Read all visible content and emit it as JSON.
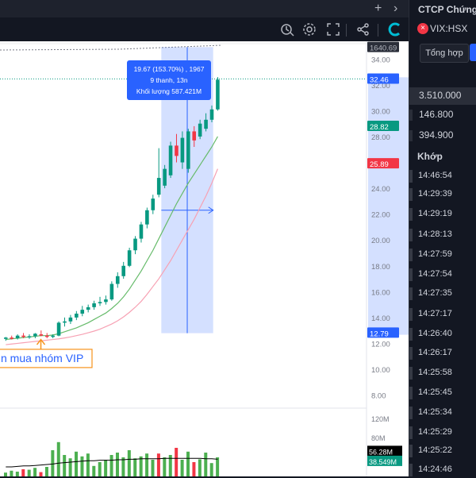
{
  "window": {
    "title": "CTCP Chứng"
  },
  "icons": {
    "add": "plus-icon",
    "menu": "chevron-right-icon",
    "replay": "replay-icon",
    "settings": "gear-icon",
    "fullscreen": "fullscreen-icon",
    "share": "share-icon",
    "logo": "brand-logo"
  },
  "symbol": {
    "code": "VIX:HSX"
  },
  "panel": {
    "tab_label": "Tổng hợp",
    "stats": [
      "3.510.000",
      "146.800",
      "394.900"
    ],
    "trades_header": "Khớp",
    "times": [
      "14:46:54",
      "14:29:39",
      "14:29:19",
      "14:28:13",
      "14:27:59",
      "14:27:54",
      "14:27:35",
      "14:27:17",
      "14:26:40",
      "14:26:17",
      "14:25:58",
      "14:25:45",
      "14:25:34",
      "14:25:29",
      "14:25:22",
      "14:24:46"
    ]
  },
  "chart_data": {
    "type": "candlestick",
    "y_ticks": [
      "34.00",
      "32.00",
      "30.00",
      "28.00",
      "26.00",
      "24.00",
      "22.00",
      "20.00",
      "18.00",
      "16.00",
      "14.00",
      "12.00",
      "10.00",
      "8.00"
    ],
    "ylim": [
      6.5,
      35
    ],
    "grid": false,
    "candles": [
      {
        "o": 12.35,
        "h": 12.5,
        "l": 12.2,
        "c": 12.45
      },
      {
        "o": 12.45,
        "h": 12.6,
        "l": 12.3,
        "c": 12.4
      },
      {
        "o": 12.4,
        "h": 12.7,
        "l": 12.3,
        "c": 12.6
      },
      {
        "o": 12.6,
        "h": 12.8,
        "l": 12.4,
        "c": 12.5
      },
      {
        "o": 12.5,
        "h": 12.7,
        "l": 12.35,
        "c": 12.55
      },
      {
        "o": 12.55,
        "h": 12.8,
        "l": 12.4,
        "c": 12.75
      },
      {
        "o": 12.7,
        "h": 13.0,
        "l": 12.55,
        "c": 12.6
      },
      {
        "o": 12.6,
        "h": 12.8,
        "l": 12.4,
        "c": 12.5
      },
      {
        "o": 12.5,
        "h": 12.7,
        "l": 12.4,
        "c": 12.6
      },
      {
        "o": 12.6,
        "h": 13.7,
        "l": 12.55,
        "c": 13.6
      },
      {
        "o": 13.6,
        "h": 14.0,
        "l": 13.3,
        "c": 13.7
      },
      {
        "o": 13.7,
        "h": 14.2,
        "l": 13.5,
        "c": 14.0
      },
      {
        "o": 14.0,
        "h": 14.5,
        "l": 13.8,
        "c": 14.3
      },
      {
        "o": 14.3,
        "h": 14.9,
        "l": 14.1,
        "c": 14.6
      },
      {
        "o": 14.6,
        "h": 15.0,
        "l": 14.4,
        "c": 14.8
      },
      {
        "o": 14.8,
        "h": 15.3,
        "l": 14.6,
        "c": 15.1
      },
      {
        "o": 15.1,
        "h": 15.6,
        "l": 14.9,
        "c": 15.2
      },
      {
        "o": 15.2,
        "h": 15.7,
        "l": 15.0,
        "c": 15.4
      },
      {
        "o": 15.4,
        "h": 16.8,
        "l": 15.3,
        "c": 16.6
      },
      {
        "o": 16.6,
        "h": 17.5,
        "l": 16.3,
        "c": 17.2
      },
      {
        "o": 17.2,
        "h": 18.3,
        "l": 17.0,
        "c": 18.0
      },
      {
        "o": 18.0,
        "h": 19.4,
        "l": 17.9,
        "c": 19.2
      },
      {
        "o": 19.2,
        "h": 20.3,
        "l": 18.9,
        "c": 20.1
      },
      {
        "o": 20.1,
        "h": 21.4,
        "l": 19.8,
        "c": 21.2
      },
      {
        "o": 21.2,
        "h": 22.5,
        "l": 20.9,
        "c": 22.3
      },
      {
        "o": 22.3,
        "h": 23.5,
        "l": 22.0,
        "c": 23.2
      },
      {
        "o": 23.5,
        "h": 27.1,
        "l": 23.3,
        "c": 24.8
      },
      {
        "o": 24.2,
        "h": 25.8,
        "l": 24.0,
        "c": 25.5
      },
      {
        "o": 25.0,
        "h": 27.6,
        "l": 24.8,
        "c": 27.3
      },
      {
        "o": 27.3,
        "h": 28.2,
        "l": 26.0,
        "c": 26.5
      },
      {
        "o": 26.0,
        "h": 28.4,
        "l": 25.5,
        "c": 27.9
      },
      {
        "o": 25.5,
        "h": 28.6,
        "l": 25.2,
        "c": 28.4
      },
      {
        "o": 28.4,
        "h": 28.8,
        "l": 27.2,
        "c": 27.7
      },
      {
        "o": 28.0,
        "h": 29.3,
        "l": 27.8,
        "c": 29.0
      },
      {
        "o": 28.6,
        "h": 29.8,
        "l": 28.4,
        "c": 29.3
      },
      {
        "o": 29.3,
        "h": 30.4,
        "l": 29.1,
        "c": 30.1
      },
      {
        "o": 30.1,
        "h": 32.6,
        "l": 30.0,
        "c": 32.4
      }
    ],
    "ma_fast": [
      12.3,
      12.35,
      12.4,
      12.45,
      12.5,
      12.55,
      12.6,
      12.6,
      12.65,
      12.75,
      12.9,
      13.05,
      13.2,
      13.4,
      13.6,
      13.85,
      14.1,
      14.35,
      14.7,
      15.1,
      15.6,
      16.2,
      16.9,
      17.6,
      18.4,
      19.2,
      20.1,
      21.0,
      21.9,
      22.8,
      23.6,
      24.4,
      25.1,
      25.8,
      26.5,
      27.2,
      28.0
    ],
    "ma_slow": [
      11.9,
      11.95,
      12.0,
      12.05,
      12.1,
      12.15,
      12.2,
      12.25,
      12.3,
      12.35,
      12.42,
      12.5,
      12.6,
      12.7,
      12.82,
      12.95,
      13.1,
      13.3,
      13.5,
      13.75,
      14.05,
      14.4,
      14.8,
      15.25,
      15.8,
      16.4,
      17.0,
      17.7,
      18.4,
      19.2,
      20.0,
      20.8,
      21.6,
      22.5,
      23.4,
      24.4,
      25.5
    ],
    "volumes": [
      {
        "v": 8,
        "up": true
      },
      {
        "v": 12,
        "up": true
      },
      {
        "v": 10,
        "up": true
      },
      {
        "v": 15,
        "up": false
      },
      {
        "v": 14,
        "up": true
      },
      {
        "v": 18,
        "up": true
      },
      {
        "v": 9,
        "up": false
      },
      {
        "v": 20,
        "up": true
      },
      {
        "v": 55,
        "up": true
      },
      {
        "v": 72,
        "up": true
      },
      {
        "v": 45,
        "up": true
      },
      {
        "v": 38,
        "up": true
      },
      {
        "v": 52,
        "up": true
      },
      {
        "v": 42,
        "up": true
      },
      {
        "v": 48,
        "up": true
      },
      {
        "v": 22,
        "up": true
      },
      {
        "v": 30,
        "up": true
      },
      {
        "v": 35,
        "up": true
      },
      {
        "v": 45,
        "up": true
      },
      {
        "v": 50,
        "up": true
      },
      {
        "v": 40,
        "up": true
      },
      {
        "v": 55,
        "up": true
      },
      {
        "v": 38,
        "up": true
      },
      {
        "v": 42,
        "up": true
      },
      {
        "v": 48,
        "up": true
      },
      {
        "v": 35,
        "up": true
      },
      {
        "v": 48,
        "up": false
      },
      {
        "v": 40,
        "up": true
      },
      {
        "v": 45,
        "up": true
      },
      {
        "v": 60,
        "up": false
      },
      {
        "v": 35,
        "up": true
      },
      {
        "v": 52,
        "up": true
      },
      {
        "v": 30,
        "up": false
      },
      {
        "v": 36,
        "up": true
      },
      {
        "v": 50,
        "up": true
      },
      {
        "v": 28,
        "up": true
      },
      {
        "v": 40,
        "up": true
      }
    ],
    "vol_ticks": [
      "120M",
      "80M"
    ],
    "volume_ma": [
      20,
      20,
      21,
      22,
      22,
      23,
      24,
      25,
      26,
      28,
      29,
      30,
      31,
      32,
      33,
      33,
      34,
      34,
      34,
      35,
      35,
      36,
      36,
      37,
      37,
      37,
      37,
      38,
      38,
      38,
      38,
      38,
      38,
      38,
      37,
      37,
      36
    ],
    "price_labels": [
      {
        "text": "1640.69",
        "v": 34.9,
        "color": "#2a2e39",
        "text_color": "#b2b5be"
      },
      {
        "text": "32.46",
        "v": 32.45,
        "color": "#2962ff",
        "text_color": "#ffffff"
      },
      {
        "text": "28.82",
        "v": 28.8,
        "color": "#089981",
        "text_color": "#ffffff"
      },
      {
        "text": "25.89",
        "v": 25.9,
        "color": "#f23645",
        "text_color": "#ffffff"
      },
      {
        "text": "12.79",
        "v": 12.8,
        "color": "#2962ff",
        "text_color": "#ffffff"
      }
    ],
    "vol_labels": [
      {
        "text": "56.28M",
        "color": "#000000",
        "text_color": "#ffffff"
      },
      {
        "text": "38.549M",
        "color": "#089981",
        "text_color": "#ffffff"
      }
    ],
    "measure": {
      "line1": "19.67 (153.70%) , 1967",
      "line2": "9 thanh, 13n",
      "line3": "Khối lượng 587.421M",
      "from_bar": 27,
      "to_bar": 35,
      "low": 12.79,
      "high": 32.46
    },
    "annotation": {
      "text": "n mua nhóm VIP",
      "bar": 6
    }
  }
}
